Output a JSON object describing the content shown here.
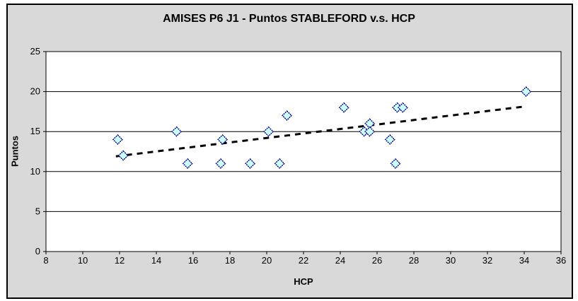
{
  "chart": {
    "background": "#d9d9d9",
    "plot_background": "#ffffff",
    "border_color": "#000000",
    "grid_color": "#000000",
    "marker_fill": "#ccffff",
    "marker_stroke": "#000080",
    "trend_color": "#000000"
  },
  "chart_data": {
    "type": "scatter",
    "title": "AMISES P6 J1 - Puntos STABLEFORD v.s. HCP",
    "xlabel": "HCP",
    "ylabel": "Puntos",
    "xlim": [
      8,
      36
    ],
    "ylim": [
      0,
      25
    ],
    "x_ticks": [
      8,
      10,
      12,
      14,
      16,
      18,
      20,
      22,
      24,
      26,
      28,
      30,
      32,
      34,
      36
    ],
    "y_ticks": [
      0,
      5,
      10,
      15,
      20,
      25
    ],
    "grid": "horizontal",
    "legend": "none",
    "series": [
      {
        "name": "Puntos STABLEFORD",
        "marker": "diamond",
        "points": [
          [
            11.9,
            14
          ],
          [
            12.2,
            12
          ],
          [
            15.1,
            15
          ],
          [
            15.7,
            11
          ],
          [
            17.6,
            14
          ],
          [
            17.5,
            11
          ],
          [
            19.1,
            11
          ],
          [
            20.1,
            15
          ],
          [
            20.7,
            11
          ],
          [
            21.1,
            17
          ],
          [
            24.2,
            18
          ],
          [
            25.3,
            15
          ],
          [
            25.6,
            16
          ],
          [
            25.6,
            15
          ],
          [
            26.7,
            14
          ],
          [
            27.0,
            11
          ],
          [
            27.1,
            18
          ],
          [
            27.4,
            18
          ],
          [
            34.1,
            20
          ]
        ]
      }
    ],
    "trendline": {
      "style": "dashed",
      "x1": 11.8,
      "y1": 11.9,
      "x2": 33.9,
      "y2": 18.1
    }
  }
}
